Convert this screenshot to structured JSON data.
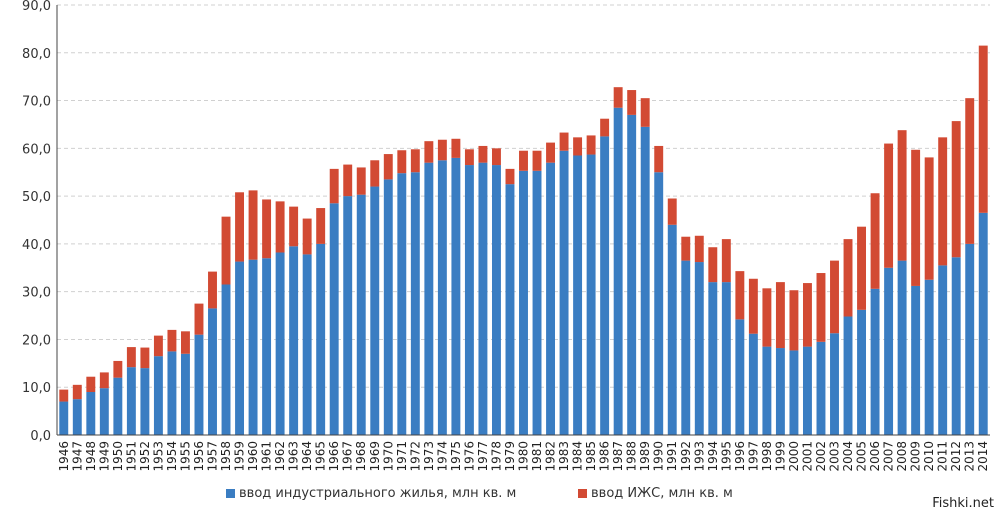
{
  "colors": {
    "industrial": "#3a7dc2",
    "izhs": "#d24a33",
    "grid": "#d0d0d0",
    "axis": "#444444"
  },
  "watermark": "Fishki.net",
  "chart_data": {
    "type": "bar",
    "stacked": true,
    "title": "",
    "xlabel": "",
    "ylabel": "",
    "ylim": [
      0,
      90
    ],
    "y_ticks": [
      "0,0",
      "10,0",
      "20,0",
      "30,0",
      "40,0",
      "50,0",
      "60,0",
      "70,0",
      "80,0",
      "90,0"
    ],
    "grid": true,
    "legend_position": "bottom",
    "categories": [
      "1946",
      "1947",
      "1948",
      "1949",
      "1950",
      "1951",
      "1952",
      "1953",
      "1954",
      "1955",
      "1956",
      "1957",
      "1958",
      "1959",
      "1960",
      "1961",
      "1962",
      "1963",
      "1964",
      "1965",
      "1966",
      "1967",
      "1968",
      "1969",
      "1970",
      "1971",
      "1972",
      "1973",
      "1974",
      "1975",
      "1976",
      "1977",
      "1978",
      "1979",
      "1980",
      "1981",
      "1982",
      "1983",
      "1984",
      "1985",
      "1986",
      "1987",
      "1988",
      "1989",
      "1990",
      "1991",
      "1992",
      "1993",
      "1994",
      "1995",
      "1996",
      "1997",
      "1998",
      "1999",
      "2000",
      "2001",
      "2002",
      "2003",
      "2004",
      "2005",
      "2006",
      "2007",
      "2008",
      "2009",
      "2010",
      "2011",
      "2012",
      "2013",
      "2014"
    ],
    "series": [
      {
        "name": "ввод индустриального жилья, млн кв. м",
        "values": [
          7.0,
          7.5,
          9.0,
          9.8,
          12.0,
          14.2,
          14.0,
          16.5,
          17.5,
          17.0,
          21.0,
          26.5,
          31.5,
          36.3,
          36.7,
          37.0,
          38.2,
          39.5,
          37.8,
          40.0,
          48.5,
          50.0,
          50.3,
          52.0,
          53.5,
          54.8,
          55.0,
          57.0,
          57.5,
          58.0,
          56.5,
          57.0,
          56.5,
          52.5,
          55.3,
          55.3,
          57.0,
          59.5,
          58.5,
          58.7,
          62.5,
          68.5,
          67.0,
          64.5,
          55.0,
          44.0,
          36.5,
          36.2,
          32.0,
          32.0,
          24.2,
          21.2,
          18.5,
          18.2,
          17.7,
          18.5,
          19.5,
          21.3,
          24.8,
          26.2,
          30.6,
          35.0,
          36.5,
          31.2,
          32.5,
          35.5,
          37.2,
          40.0,
          46.5
        ]
      },
      {
        "name": "ввод ИЖС, млн кв. м",
        "values": [
          2.5,
          3.0,
          3.2,
          3.3,
          3.5,
          4.2,
          4.3,
          4.3,
          4.5,
          4.7,
          6.5,
          7.7,
          14.2,
          14.5,
          14.5,
          12.3,
          10.7,
          8.3,
          7.5,
          7.5,
          7.2,
          6.6,
          5.7,
          5.5,
          5.3,
          4.8,
          4.8,
          4.5,
          4.3,
          4.0,
          3.3,
          3.5,
          3.5,
          3.2,
          4.2,
          4.2,
          4.2,
          3.8,
          3.8,
          4.0,
          3.7,
          4.3,
          5.2,
          6.0,
          5.5,
          5.5,
          5.0,
          5.5,
          7.3,
          9.0,
          10.1,
          11.5,
          12.2,
          13.8,
          12.6,
          13.3,
          14.4,
          15.2,
          16.2,
          17.4,
          20.0,
          26.0,
          27.3,
          28.5,
          25.6,
          26.8,
          28.5,
          30.5,
          35.0
        ]
      }
    ]
  }
}
